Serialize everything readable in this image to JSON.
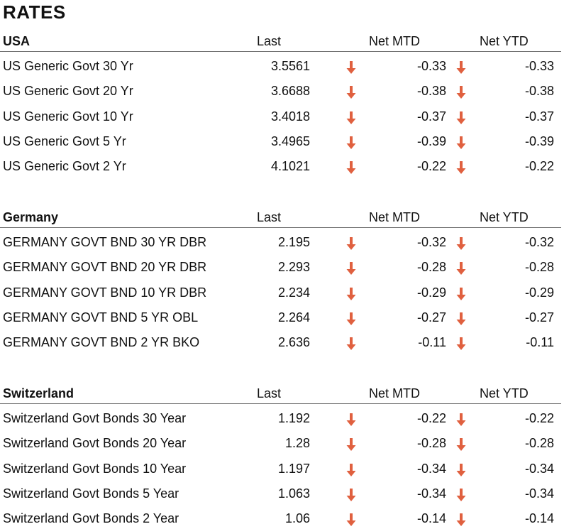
{
  "title": "RATES",
  "arrow_color": "#e0603f",
  "sections": [
    {
      "name": "USA",
      "columns": [
        "Last",
        "Net MTD",
        "Net YTD"
      ],
      "rows": [
        {
          "name": "US Generic Govt 30 Yr",
          "last": "3.5561",
          "mtd": "-0.33",
          "ytd": "-0.33",
          "mtd_dir": "down",
          "ytd_dir": "down"
        },
        {
          "name": "US Generic Govt 20 Yr",
          "last": "3.6688",
          "mtd": "-0.38",
          "ytd": "-0.38",
          "mtd_dir": "down",
          "ytd_dir": "down"
        },
        {
          "name": "US Generic Govt 10 Yr",
          "last": "3.4018",
          "mtd": "-0.37",
          "ytd": "-0.37",
          "mtd_dir": "down",
          "ytd_dir": "down"
        },
        {
          "name": "US Generic Govt 5 Yr",
          "last": "3.4965",
          "mtd": "-0.39",
          "ytd": "-0.39",
          "mtd_dir": "down",
          "ytd_dir": "down"
        },
        {
          "name": "US Generic Govt 2 Yr",
          "last": "4.1021",
          "mtd": "-0.22",
          "ytd": "-0.22",
          "mtd_dir": "down",
          "ytd_dir": "down"
        }
      ]
    },
    {
      "name": "Germany",
      "columns": [
        "Last",
        "Net MTD",
        "Net YTD"
      ],
      "rows": [
        {
          "name": "GERMANY GOVT BND 30 YR DBR",
          "last": "2.195",
          "mtd": "-0.32",
          "ytd": "-0.32",
          "mtd_dir": "down",
          "ytd_dir": "down"
        },
        {
          "name": "GERMANY GOVT BND 20 YR DBR",
          "last": "2.293",
          "mtd": "-0.28",
          "ytd": "-0.28",
          "mtd_dir": "down",
          "ytd_dir": "down"
        },
        {
          "name": "GERMANY GOVT BND 10 YR DBR",
          "last": "2.234",
          "mtd": "-0.29",
          "ytd": "-0.29",
          "mtd_dir": "down",
          "ytd_dir": "down"
        },
        {
          "name": "GERMANY GOVT BND 5 YR OBL",
          "last": "2.264",
          "mtd": "-0.27",
          "ytd": "-0.27",
          "mtd_dir": "down",
          "ytd_dir": "down"
        },
        {
          "name": "GERMANY GOVT BND 2 YR BKO",
          "last": "2.636",
          "mtd": "-0.11",
          "ytd": "-0.11",
          "mtd_dir": "down",
          "ytd_dir": "down"
        }
      ]
    },
    {
      "name": "Switzerland",
      "columns": [
        "Last",
        "Net MTD",
        "Net YTD"
      ],
      "rows": [
        {
          "name": "Switzerland Govt Bonds 30 Year",
          "last": "1.192",
          "mtd": "-0.22",
          "ytd": "-0.22",
          "mtd_dir": "down",
          "ytd_dir": "down"
        },
        {
          "name": "Switzerland Govt Bonds 20 Year",
          "last": "1.28",
          "mtd": "-0.28",
          "ytd": "-0.28",
          "mtd_dir": "down",
          "ytd_dir": "down"
        },
        {
          "name": "Switzerland Govt Bonds 10 Year",
          "last": "1.197",
          "mtd": "-0.34",
          "ytd": "-0.34",
          "mtd_dir": "down",
          "ytd_dir": "down"
        },
        {
          "name": "Switzerland Govt Bonds 5 Year",
          "last": "1.063",
          "mtd": "-0.34",
          "ytd": "-0.34",
          "mtd_dir": "down",
          "ytd_dir": "down"
        },
        {
          "name": "Switzerland Govt Bonds 2 Year",
          "last": "1.06",
          "mtd": "-0.14",
          "ytd": "-0.14",
          "mtd_dir": "down",
          "ytd_dir": "down"
        }
      ]
    }
  ]
}
